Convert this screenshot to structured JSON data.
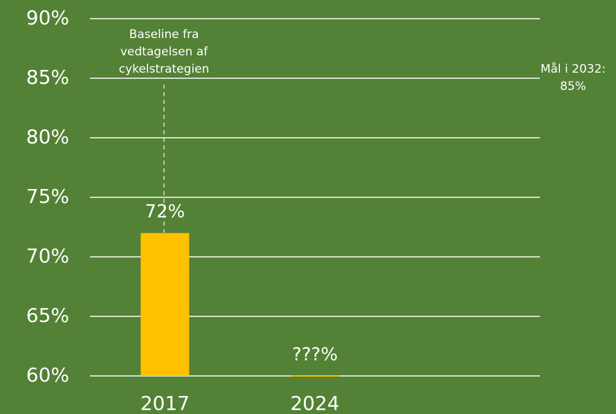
{
  "chart_data": {
    "type": "bar",
    "categories": [
      "2017",
      "2024"
    ],
    "values": [
      72,
      60
    ],
    "value_labels": [
      "72%",
      "???%"
    ],
    "color": "#ffc000",
    "ylim": [
      60,
      90
    ],
    "yticks": [
      {
        "value": 60,
        "label": "60%"
      },
      {
        "value": 65,
        "label": "65%"
      },
      {
        "value": 70,
        "label": "70%"
      },
      {
        "value": 75,
        "label": "75%"
      },
      {
        "value": 80,
        "label": "80%"
      },
      {
        "value": 85,
        "label": "85%"
      },
      {
        "value": 90,
        "label": "90%"
      }
    ],
    "grid": true,
    "annotations": [
      {
        "lines": [
          "Baseline fra",
          "vedtagelsen af",
          "cykelstrategien"
        ]
      },
      {
        "lines": [
          "Mål i 2032:",
          "85%"
        ]
      }
    ]
  }
}
